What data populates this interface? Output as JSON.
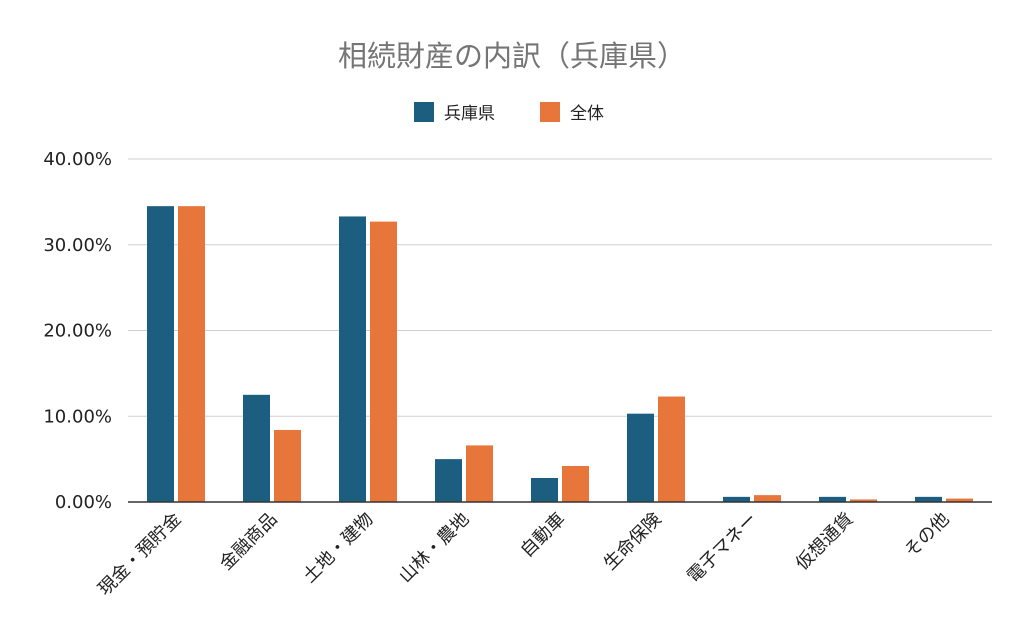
{
  "chart_data": {
    "type": "bar",
    "title": "相続財産の内訳（兵庫県）",
    "categories": [
      "現金・預貯金",
      "金融商品",
      "土地・建物",
      "山林・農地",
      "自動車",
      "生命保険",
      "電子マネー",
      "仮想通貨",
      "その他"
    ],
    "series": [
      {
        "name": "兵庫県",
        "color": "#1b5e80",
        "values": [
          34.5,
          12.5,
          33.3,
          5.0,
          2.8,
          10.3,
          0.6,
          0.6,
          0.6
        ]
      },
      {
        "name": "全体",
        "color": "#e8763a",
        "values": [
          34.5,
          8.4,
          32.7,
          6.6,
          4.2,
          12.3,
          0.8,
          0.3,
          0.4
        ]
      }
    ],
    "ylim": [
      0,
      40
    ],
    "yticks": [
      "0.00%",
      "10.00%",
      "20.00%",
      "30.00%",
      "40.00%"
    ],
    "grid": true,
    "legend": "top-center"
  }
}
